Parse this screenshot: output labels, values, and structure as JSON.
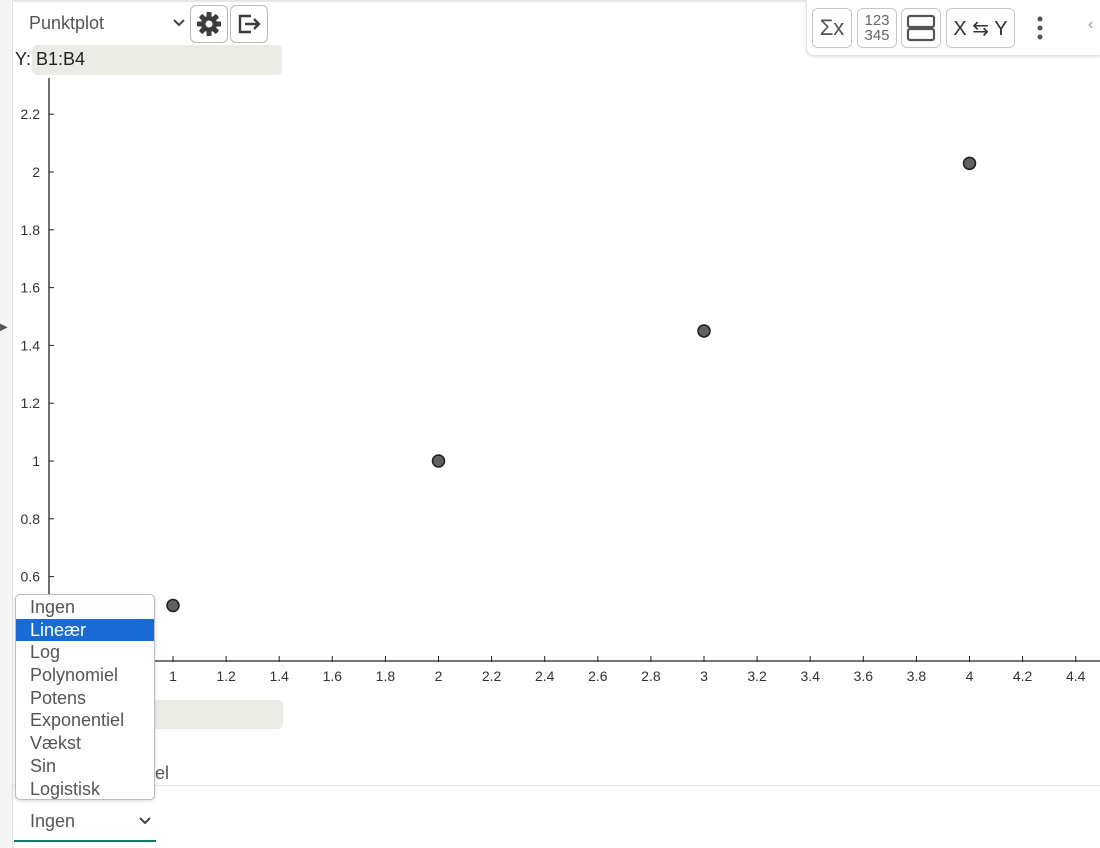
{
  "header": {
    "plot_type": "Punktplot",
    "settings_icon": "gear-icon",
    "export_icon": "export-icon",
    "y_label": "Y:",
    "y_value": "B1:B4"
  },
  "toolbar": {
    "sigma_label": "Σx",
    "numbers_top": "123",
    "numbers_bottom": "345",
    "swap_label": "X ⇆ Y"
  },
  "chart_data": {
    "type": "scatter",
    "x": [
      1,
      2,
      3,
      4
    ],
    "y": [
      0.5,
      1.0,
      1.45,
      2.03
    ],
    "xlim": [
      0.55,
      4.5
    ],
    "ylim": [
      0.35,
      2.35
    ],
    "xticks": [
      "1",
      "1.2",
      "1.4",
      "1.6",
      "1.8",
      "2",
      "2.2",
      "2.4",
      "2.6",
      "2.8",
      "3",
      "3.2",
      "3.4",
      "3.6",
      "3.8",
      "4",
      "4.2",
      "4.4"
    ],
    "yticks": [
      "0.6",
      "0.8",
      "1",
      "1.2",
      "1.4",
      "1.6",
      "1.8",
      "2",
      "2.2"
    ],
    "grid": false,
    "point_color": "#616161"
  },
  "regression": {
    "selected": "Ingen",
    "options": [
      "Ingen",
      "Lineær",
      "Log",
      "Polynomiel",
      "Potens",
      "Exponentiel",
      "Vækst",
      "Sin",
      "Logistisk"
    ],
    "highlighted": "Lineær",
    "behind_text": "el"
  },
  "colors": {
    "accent": "#1a6ad6",
    "underline": "#117a6c",
    "field_bg": "#ebebe6"
  }
}
